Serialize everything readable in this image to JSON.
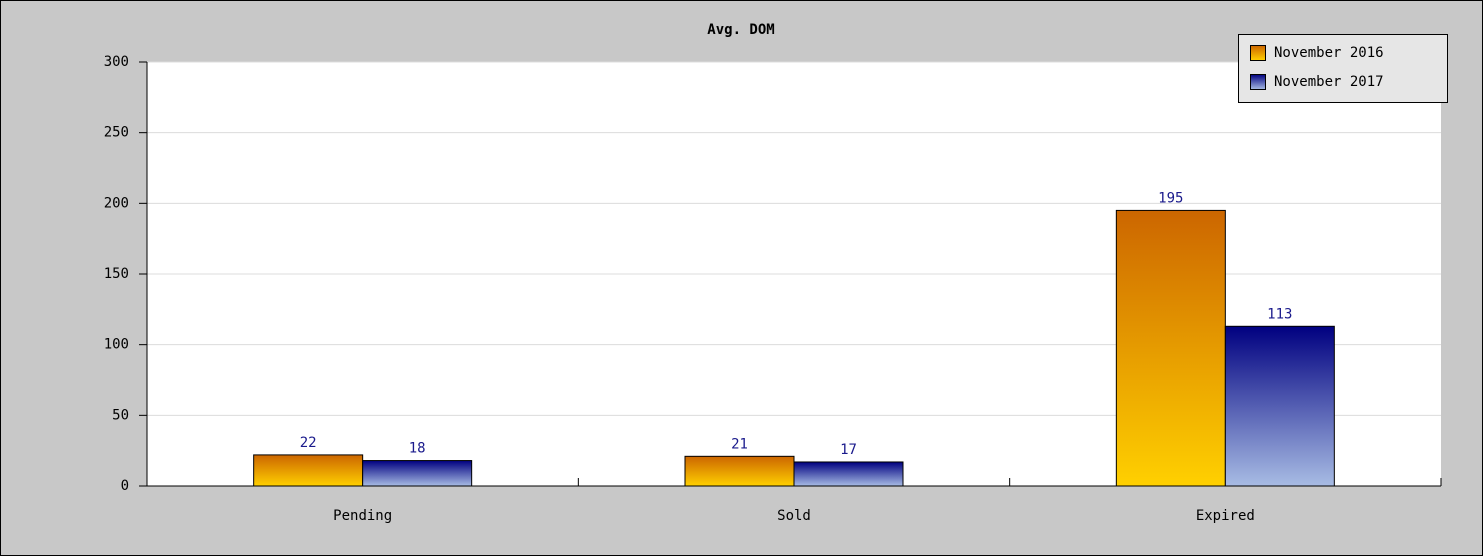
{
  "chart_data": {
    "type": "bar",
    "title": "Avg. DOM",
    "categories": [
      "Pending",
      "Sold",
      "Expired"
    ],
    "series": [
      {
        "name": "November 2016",
        "color": "#e69500",
        "values": [
          22,
          21,
          195
        ]
      },
      {
        "name": "November 2017",
        "color": "#1a1a80",
        "values": [
          18,
          17,
          113
        ]
      }
    ],
    "ylim": [
      0,
      300
    ],
    "yticks": [
      0,
      50,
      100,
      150,
      200,
      250,
      300
    ],
    "grid": true,
    "legend": "top-right"
  }
}
